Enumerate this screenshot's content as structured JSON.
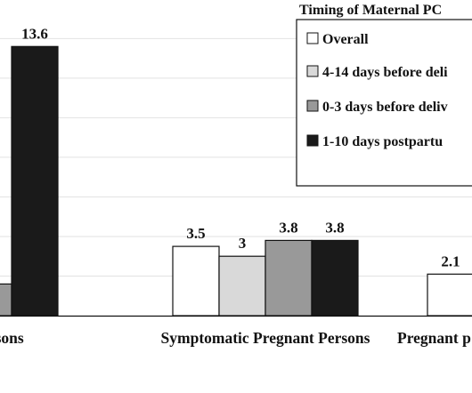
{
  "chart_data": {
    "type": "bar",
    "categories": [
      "Pregnant Persons",
      "Symptomatic Pregnant Persons",
      "Pregnant p"
    ],
    "series": [
      {
        "name": "Overall",
        "color": "#ffffff",
        "values": [
          null,
          3.5,
          2.1
        ]
      },
      {
        "name": "4-14 days before deli",
        "color": "#d9d9d9",
        "values": [
          null,
          3.0,
          null
        ]
      },
      {
        "name": "0-3 days before deliv",
        "color": "#999999",
        "values": [
          1.6,
          3.8,
          null
        ]
      },
      {
        "name": "1-10 days postpartu",
        "color": "#1a1a1a",
        "values": [
          13.6,
          3.8,
          null
        ]
      }
    ],
    "data_labels": [
      [
        null,
        "3.5",
        "2.1"
      ],
      [
        null,
        "3",
        null
      ],
      [
        "1.6",
        "3.8",
        null
      ],
      [
        "13.6",
        "3.8",
        null
      ]
    ],
    "ylim": [
      0,
      15.5
    ],
    "grid": true,
    "legend": {
      "title": "Timing of Maternal PC",
      "position": "top-right"
    }
  }
}
